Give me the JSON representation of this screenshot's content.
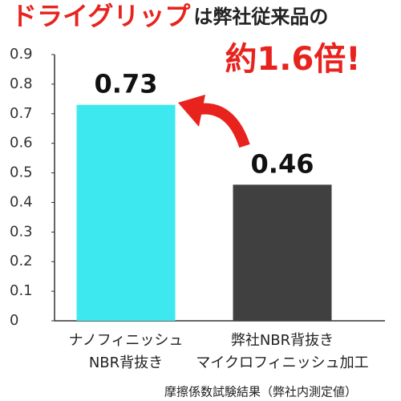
{
  "chart_data": {
    "type": "bar",
    "title_parts": [
      {
        "text": "ドライグリップ",
        "color": "#e8231e"
      },
      {
        "text": "は弊社従来品の",
        "color": "#222222"
      }
    ],
    "annotation": "約1.6倍!",
    "annotation_color": "#e8231e",
    "categories": [
      [
        "ナノフィニッシュ",
        "NBR背抜き"
      ],
      [
        "弊社NBR背抜き",
        "マイクロフィニッシュ加工"
      ]
    ],
    "values": [
      0.73,
      0.46
    ],
    "colors": [
      "#3ee8ef",
      "#404040"
    ],
    "ylim": [
      0,
      0.9
    ],
    "yticks": [
      0,
      0.1,
      0.2,
      0.3,
      0.4,
      0.5,
      0.6,
      0.7,
      0.8,
      0.9
    ],
    "note": "摩擦係数試験結果（弊社内測定値）"
  }
}
